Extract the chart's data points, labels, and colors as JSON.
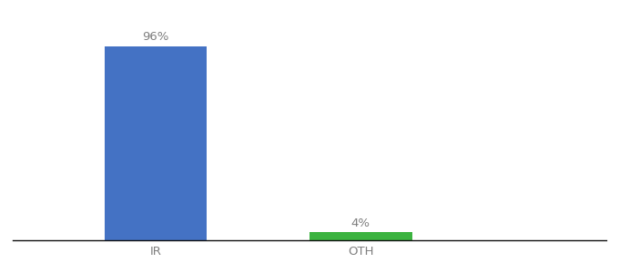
{
  "categories": [
    "IR",
    "OTH"
  ],
  "values": [
    96,
    4
  ],
  "bar_colors": [
    "#4472c4",
    "#3cb340"
  ],
  "value_labels": [
    "96%",
    "4%"
  ],
  "background_color": "#ffffff",
  "ylim": [
    0,
    108
  ],
  "bar_width": 0.5,
  "label_fontsize": 9.5,
  "tick_fontsize": 9.5,
  "tick_color": "#7f7f7f",
  "label_color": "#7f7f7f",
  "x_positions": [
    1,
    2
  ],
  "xlim": [
    0.3,
    3.2
  ]
}
